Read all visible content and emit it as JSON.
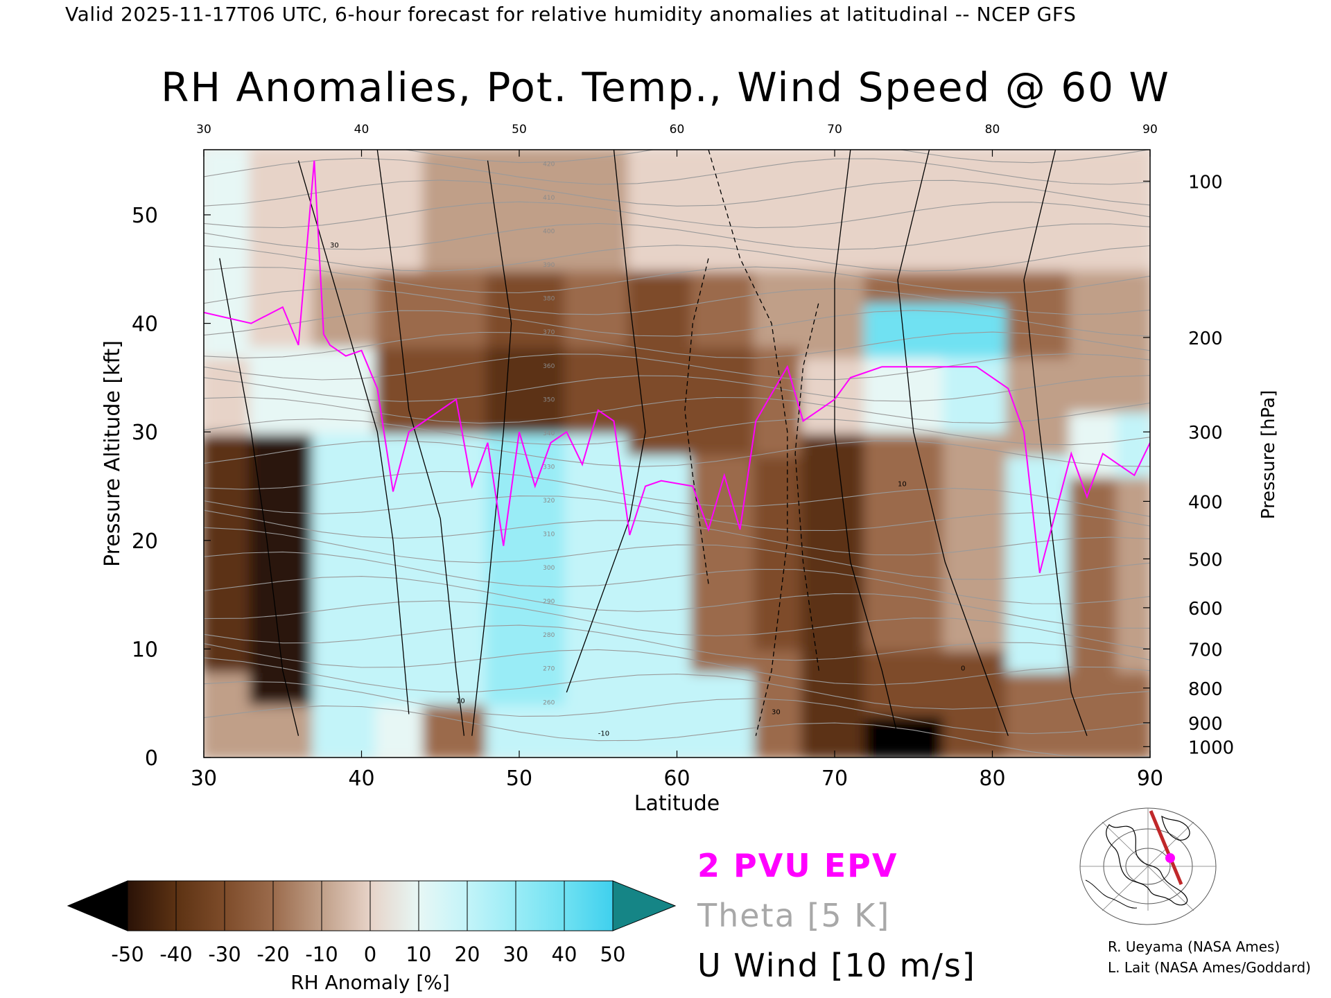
{
  "header": {
    "valid_line": "Valid 2025-11-17T06 UTC, 6-hour forecast for relative humidity anomalies at latitudinal -- NCEP GFS"
  },
  "chart_data": {
    "type": "heatmap",
    "title": "RH Anomalies, Pot. Temp., Wind Speed @ 60 W",
    "xlabel": "Latitude",
    "ylabel": "Pressure Altitude [kft]",
    "y2label": "Pressure [hPa]",
    "xlim": [
      30,
      90
    ],
    "ylim": [
      0,
      56
    ],
    "x_ticks": [
      "30",
      "40",
      "50",
      "60",
      "70",
      "80",
      "90"
    ],
    "top_x_ticks": [
      "30",
      "40",
      "50",
      "60",
      "70",
      "80",
      "90"
    ],
    "y_ticks": [
      {
        "value": 0,
        "label": "0"
      },
      {
        "value": 10,
        "label": "10"
      },
      {
        "value": 20,
        "label": "20"
      },
      {
        "value": 30,
        "label": "30"
      },
      {
        "value": 40,
        "label": "40"
      },
      {
        "value": 50,
        "label": "50"
      }
    ],
    "pressure_ticks": [
      {
        "kft": 1,
        "label": "1000"
      },
      {
        "kft": 3.2,
        "label": "900"
      },
      {
        "kft": 6.4,
        "label": "800"
      },
      {
        "kft": 10,
        "label": "700"
      },
      {
        "kft": 13.8,
        "label": "600"
      },
      {
        "kft": 18.3,
        "label": "500"
      },
      {
        "kft": 23.6,
        "label": "400"
      },
      {
        "kft": 30,
        "label": "300"
      },
      {
        "kft": 38.7,
        "label": "200"
      },
      {
        "kft": 53.1,
        "label": "100"
      }
    ],
    "rh_bands": [
      {
        "lat_start": 30,
        "lat_end": 33,
        "rows": [
          [
            0,
            8,
            -10
          ],
          [
            8,
            30,
            -40
          ],
          [
            30,
            37,
            5
          ],
          [
            37,
            56,
            10
          ]
        ]
      },
      {
        "lat_start": 33,
        "lat_end": 37,
        "rows": [
          [
            0,
            5,
            -5
          ],
          [
            5,
            30,
            -45
          ],
          [
            30,
            38,
            15
          ],
          [
            38,
            56,
            5
          ]
        ]
      },
      {
        "lat_start": 37,
        "lat_end": 41,
        "rows": [
          [
            0,
            5,
            20
          ],
          [
            5,
            30,
            25
          ],
          [
            30,
            38,
            15
          ],
          [
            38,
            45,
            -10
          ],
          [
            45,
            56,
            0
          ]
        ]
      },
      {
        "lat_start": 41,
        "lat_end": 44,
        "rows": [
          [
            0,
            5,
            10
          ],
          [
            5,
            30,
            20
          ],
          [
            30,
            38,
            -30
          ],
          [
            38,
            45,
            -20
          ],
          [
            45,
            56,
            0
          ]
        ]
      },
      {
        "lat_start": 44,
        "lat_end": 48,
        "rows": [
          [
            0,
            5,
            -15
          ],
          [
            5,
            30,
            25
          ],
          [
            30,
            38,
            -30
          ],
          [
            38,
            45,
            -20
          ],
          [
            45,
            56,
            -5
          ]
        ]
      },
      {
        "lat_start": 48,
        "lat_end": 53,
        "rows": [
          [
            0,
            5,
            25
          ],
          [
            5,
            30,
            30
          ],
          [
            30,
            38,
            -35
          ],
          [
            38,
            45,
            -25
          ],
          [
            45,
            56,
            -10
          ]
        ]
      },
      {
        "lat_start": 53,
        "lat_end": 57,
        "rows": [
          [
            0,
            5,
            20
          ],
          [
            5,
            30,
            25
          ],
          [
            30,
            38,
            -25
          ],
          [
            38,
            45,
            -20
          ],
          [
            45,
            56,
            -5
          ]
        ]
      },
      {
        "lat_start": 57,
        "lat_end": 61,
        "rows": [
          [
            0,
            5,
            20
          ],
          [
            5,
            28,
            20
          ],
          [
            28,
            38,
            -30
          ],
          [
            38,
            45,
            -25
          ],
          [
            45,
            56,
            0
          ]
        ]
      },
      {
        "lat_start": 61,
        "lat_end": 65,
        "rows": [
          [
            0,
            8,
            20
          ],
          [
            8,
            28,
            -15
          ],
          [
            28,
            38,
            -25
          ],
          [
            38,
            45,
            -15
          ],
          [
            45,
            56,
            0
          ]
        ]
      },
      {
        "lat_start": 65,
        "lat_end": 68,
        "rows": [
          [
            0,
            10,
            -15
          ],
          [
            10,
            28,
            -25
          ],
          [
            28,
            38,
            -15
          ],
          [
            38,
            45,
            -10
          ],
          [
            45,
            56,
            0
          ]
        ]
      },
      {
        "lat_start": 68,
        "lat_end": 72,
        "rows": [
          [
            0,
            6,
            -40
          ],
          [
            6,
            30,
            -35
          ],
          [
            30,
            37,
            5
          ],
          [
            37,
            45,
            -10
          ],
          [
            45,
            56,
            0
          ]
        ]
      },
      {
        "lat_start": 72,
        "lat_end": 77,
        "rows": [
          [
            0,
            4,
            -55
          ],
          [
            4,
            10,
            -30
          ],
          [
            10,
            30,
            -20
          ],
          [
            30,
            37,
            15
          ],
          [
            37,
            42,
            45
          ],
          [
            42,
            45,
            -15
          ],
          [
            45,
            56,
            0
          ]
        ]
      },
      {
        "lat_start": 77,
        "lat_end": 81,
        "rows": [
          [
            0,
            10,
            -25
          ],
          [
            10,
            30,
            -10
          ],
          [
            30,
            37,
            20
          ],
          [
            37,
            42,
            40
          ],
          [
            42,
            45,
            -15
          ],
          [
            45,
            56,
            0
          ]
        ]
      },
      {
        "lat_start": 81,
        "lat_end": 85,
        "rows": [
          [
            0,
            8,
            -20
          ],
          [
            8,
            28,
            20
          ],
          [
            28,
            37,
            -10
          ],
          [
            37,
            45,
            -15
          ],
          [
            45,
            56,
            0
          ]
        ]
      },
      {
        "lat_start": 85,
        "lat_end": 88,
        "rows": [
          [
            0,
            8,
            -20
          ],
          [
            8,
            26,
            -15
          ],
          [
            26,
            32,
            10
          ],
          [
            32,
            45,
            -10
          ],
          [
            45,
            56,
            5
          ]
        ]
      },
      {
        "lat_start": 88,
        "lat_end": 90,
        "rows": [
          [
            0,
            8,
            -20
          ],
          [
            8,
            26,
            -10
          ],
          [
            26,
            32,
            20
          ],
          [
            32,
            45,
            -10
          ],
          [
            45,
            56,
            5
          ]
        ]
      }
    ],
    "epv_2pvu": {
      "name": "2 PVU EPV",
      "x": [
        30,
        33,
        35,
        36,
        37,
        37.6,
        38,
        39,
        40,
        41,
        42,
        43,
        44,
        46,
        47,
        48,
        49,
        50,
        51,
        52,
        53,
        54,
        55,
        56,
        57,
        58,
        59,
        61,
        62,
        63,
        64,
        65,
        66,
        67,
        68,
        69,
        70,
        71,
        73,
        75,
        77,
        79,
        81,
        82,
        83,
        84,
        85,
        86,
        87,
        88,
        89,
        90
      ],
      "y": [
        41,
        40,
        41.5,
        38,
        55,
        39,
        38,
        37,
        37.5,
        34,
        24.5,
        30,
        31,
        33,
        25,
        29,
        19.5,
        30,
        25,
        29,
        30,
        27,
        32,
        31,
        20.5,
        25,
        25.5,
        25,
        21,
        26,
        21,
        31,
        33.5,
        36,
        31,
        32,
        33,
        35,
        36,
        36,
        36,
        36,
        34,
        30,
        17,
        22.5,
        28,
        24,
        28,
        27,
        26,
        29
      ]
    },
    "theta": {
      "name": "Theta [5 K]",
      "interval": 5,
      "labels": [
        "420",
        "410",
        "400",
        "390",
        "380",
        "370",
        "360",
        "350",
        "340",
        "330",
        "320",
        "310",
        "300",
        "290",
        "280",
        "270",
        "260"
      ]
    },
    "u_wind": {
      "name": "U Wind [10 m/s]",
      "contour_labels": [
        "30",
        "10",
        "0",
        "-10"
      ]
    },
    "colorbar": {
      "label": "RH Anomaly [%]",
      "ticks": [
        "-50",
        "-40",
        "-30",
        "-20",
        "-10",
        "0",
        "10",
        "20",
        "30",
        "40",
        "50"
      ],
      "colors": [
        "#000000",
        "#2a1207",
        "#5c3213",
        "#7e4c2a",
        "#9b6b4c",
        "#c09f88",
        "#e7d3c8",
        "#e7f7f5",
        "#c3f4f9",
        "#99ecf6",
        "#6fe1f2",
        "#3fd0ee",
        "#14a6c7",
        "#158586"
      ]
    }
  },
  "legend": {
    "epv": "2 PVU EPV",
    "theta": "Theta [5 K]",
    "wind": "U Wind [10 m/s]"
  },
  "credits": {
    "line1": "R. Ueyama (NASA Ames)",
    "line2": "L. Lait (NASA Ames/Goddard)"
  }
}
